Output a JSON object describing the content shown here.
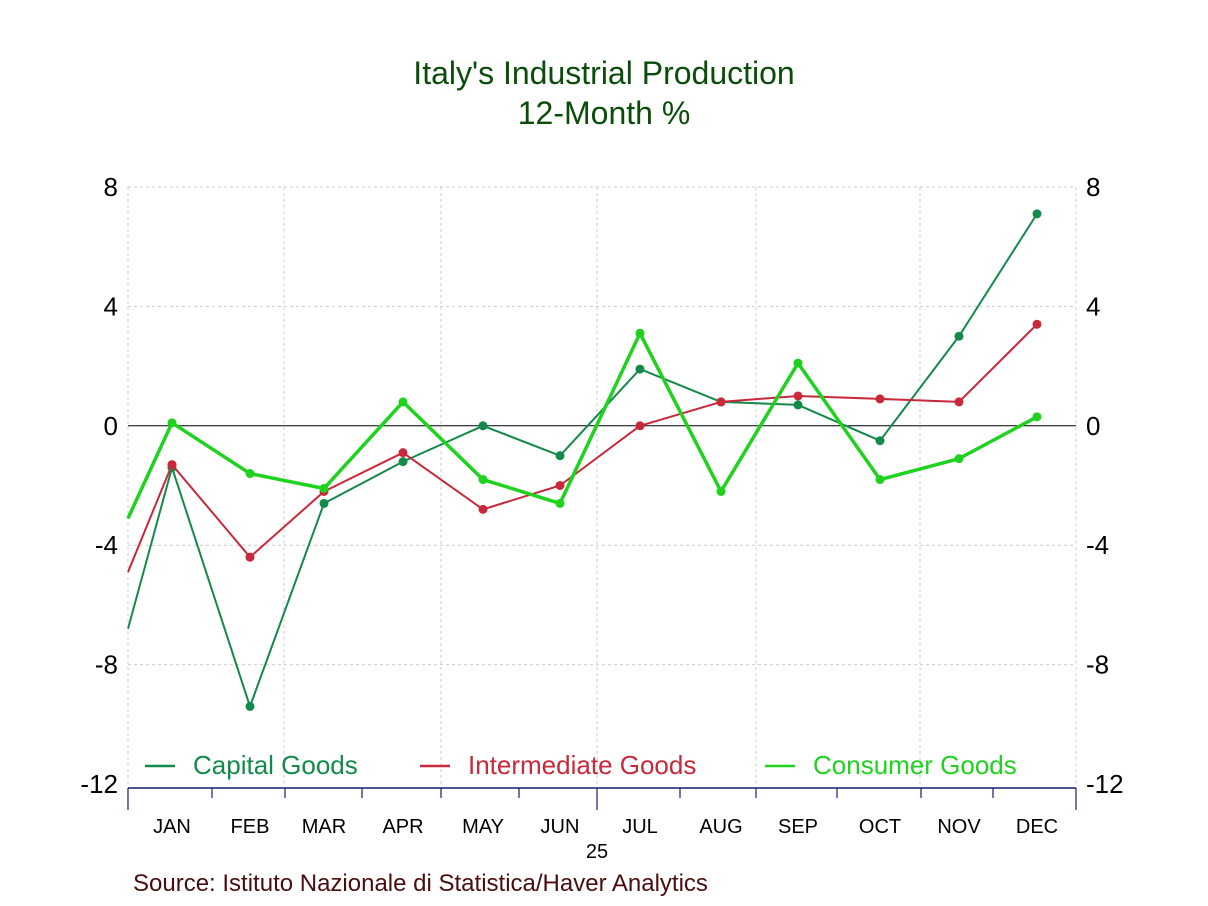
{
  "chart_data": {
    "type": "line",
    "title": "Italy's Industrial Production",
    "subtitle": "12-Month %",
    "x": [
      "JAN",
      "FEB",
      "MAR",
      "APR",
      "MAY",
      "JUN",
      "JUL",
      "AUG",
      "SEP",
      "OCT",
      "NOV",
      "DEC"
    ],
    "year_label": "25",
    "ylim": [
      -12,
      8
    ],
    "yticks": [
      "8",
      "4",
      "0",
      "-4",
      "-8",
      "-12"
    ],
    "ytick_values": [
      8,
      4,
      0,
      -4,
      -8,
      -12
    ],
    "grid": true,
    "legend_position": "bottom-inside",
    "series": [
      {
        "name": "Capital Goods",
        "color": "#138a4a",
        "width": 2,
        "prior_value": -6.8,
        "values": [
          -1.4,
          -9.4,
          -2.6,
          -1.2,
          0.0,
          -1.0,
          1.9,
          0.8,
          0.7,
          -0.5,
          3.0,
          7.1
        ]
      },
      {
        "name": "Intermediate Goods",
        "color": "#c8283a",
        "width": 2,
        "prior_value": -4.9,
        "values": [
          -1.3,
          -4.4,
          -2.2,
          -0.9,
          -2.8,
          -2.0,
          0.0,
          0.8,
          1.0,
          0.9,
          0.8,
          3.4
        ]
      },
      {
        "name": "Consumer Goods",
        "color": "#1ed21e",
        "width": 3.5,
        "prior_value": -3.1,
        "values": [
          0.1,
          -1.6,
          -2.1,
          0.8,
          -1.8,
          -2.6,
          3.1,
          -2.2,
          2.1,
          -1.8,
          -1.1,
          0.3
        ]
      }
    ]
  },
  "source": "Source:  Istituto Nazionale di Statistica/Haver Analytics"
}
